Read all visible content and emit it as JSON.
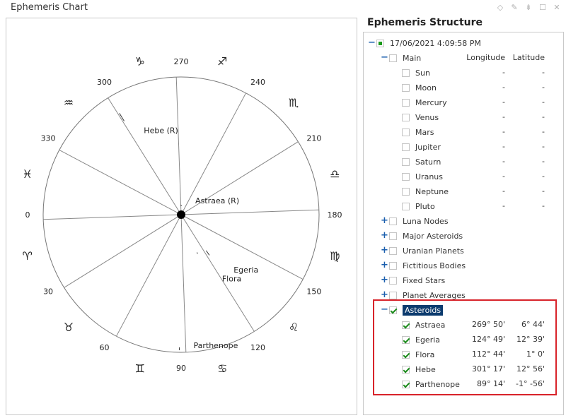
{
  "chart_panel": {
    "title": "Ephemeris Chart"
  },
  "structure_panel": {
    "title": "Ephemeris Structure",
    "root_label": "17/06/2021 4:09:58 PM",
    "main": {
      "label": "Main",
      "col_longitude": "Longitude",
      "col_latitude": "Latitude",
      "items": [
        {
          "label": "Sun",
          "longitude": "-",
          "latitude": "-"
        },
        {
          "label": "Moon",
          "longitude": "-",
          "latitude": "-"
        },
        {
          "label": "Mercury",
          "longitude": "-",
          "latitude": "-"
        },
        {
          "label": "Venus",
          "longitude": "-",
          "latitude": "-"
        },
        {
          "label": "Mars",
          "longitude": "-",
          "latitude": "-"
        },
        {
          "label": "Jupiter",
          "longitude": "-",
          "latitude": "-"
        },
        {
          "label": "Saturn",
          "longitude": "-",
          "latitude": "-"
        },
        {
          "label": "Uranus",
          "longitude": "-",
          "latitude": "-"
        },
        {
          "label": "Neptune",
          "longitude": "-",
          "latitude": "-"
        },
        {
          "label": "Pluto",
          "longitude": "-",
          "latitude": "-"
        }
      ]
    },
    "groups": [
      {
        "label": "Luna Nodes"
      },
      {
        "label": "Major Asteroids"
      },
      {
        "label": "Uranian Planets"
      },
      {
        "label": "Fictitious Bodies"
      },
      {
        "label": "Fixed Stars"
      },
      {
        "label": "Planet Averages"
      }
    ],
    "asteroids": {
      "label": "Asteroids",
      "items": [
        {
          "label": "Astraea",
          "longitude": "269° 50'",
          "latitude": "6° 44'"
        },
        {
          "label": "Egeria",
          "longitude": "124° 49'",
          "latitude": "12° 39'"
        },
        {
          "label": "Flora",
          "longitude": "112° 44'",
          "latitude": "1° 0'"
        },
        {
          "label": "Hebe",
          "longitude": "301° 17'",
          "latitude": "12° 56'"
        },
        {
          "label": "Parthenope",
          "longitude": "89° 14'",
          "latitude": "-1° -56'"
        }
      ]
    }
  },
  "wheel": {
    "degree_labels": [
      "0",
      "30",
      "60",
      "90",
      "120",
      "150",
      "180",
      "210",
      "240",
      "270",
      "300",
      "330"
    ],
    "zodiac_signs": [
      "♈",
      "♉",
      "♊",
      "♋",
      "♌",
      "♍",
      "♎",
      "♏",
      "♐",
      "♑",
      "♒",
      "♓"
    ],
    "bodies": [
      {
        "name": "Astraea (R)",
        "longitude": 269.83
      },
      {
        "name": "Egeria",
        "longitude": 124.82
      },
      {
        "name": "Flora",
        "longitude": 112.73
      },
      {
        "name": "Hebe (R)",
        "longitude": 301.28
      },
      {
        "name": "Parthenope",
        "longitude": 89.23
      }
    ]
  },
  "icons": [
    "diamond-icon",
    "pin-icon",
    "dock-icon",
    "maximize-icon",
    "close-icon"
  ]
}
